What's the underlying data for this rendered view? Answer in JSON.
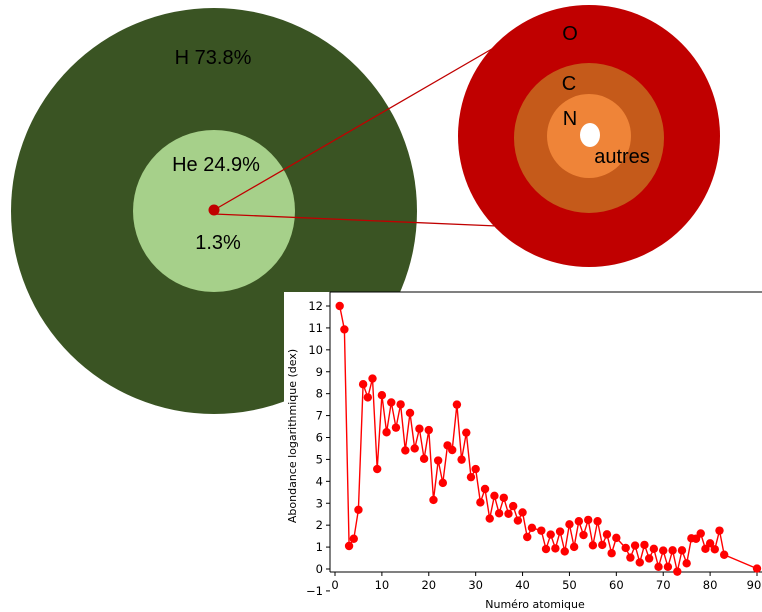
{
  "diagram": {
    "labels": {
      "hydrogen": "H 73.8%",
      "helium": "He 24.9%",
      "metals": "1.3%",
      "oxygen": "O",
      "carbon": "C",
      "nitrogen": "N",
      "others": "autres"
    },
    "colors": {
      "hydrogen": "#3a5423",
      "helium": "#a6d08a",
      "metals_dot": "#c00000",
      "oxygen": "#c00000",
      "carbon": "#c55a1a",
      "nitrogen": "#ef8438",
      "others": "#ffffff",
      "connector": "#c00000"
    }
  },
  "chart_data": {
    "type": "line",
    "xlabel": "Numéro atomique",
    "ylabel": "Abondance logarithmique (dex)",
    "xlim": [
      0,
      92
    ],
    "ylim": [
      -1.2,
      12.6
    ],
    "xticks": [
      0,
      10,
      20,
      30,
      40,
      50,
      60,
      70,
      80,
      90
    ],
    "yticks": [
      -1,
      0,
      1,
      2,
      3,
      4,
      5,
      6,
      7,
      8,
      9,
      10,
      11,
      12
    ],
    "color": "#ff0000",
    "x": [
      1,
      2,
      3,
      4,
      5,
      6,
      7,
      8,
      9,
      10,
      11,
      12,
      13,
      14,
      15,
      16,
      17,
      18,
      19,
      20,
      21,
      22,
      23,
      24,
      25,
      26,
      27,
      28,
      29,
      30,
      31,
      32,
      33,
      34,
      35,
      36,
      37,
      38,
      39,
      40,
      41,
      42,
      44,
      45,
      46,
      47,
      48,
      49,
      50,
      51,
      52,
      53,
      54,
      55,
      56,
      57,
      58,
      59,
      60,
      62,
      63,
      64,
      65,
      66,
      67,
      68,
      69,
      70,
      71,
      72,
      73,
      74,
      75,
      76,
      77,
      78,
      79,
      80,
      81,
      82,
      83,
      90
    ],
    "y": [
      12.0,
      10.93,
      1.05,
      1.38,
      2.7,
      8.43,
      7.83,
      8.69,
      4.56,
      7.93,
      6.24,
      7.6,
      6.45,
      7.51,
      5.41,
      7.12,
      5.5,
      6.4,
      5.03,
      6.34,
      3.15,
      4.95,
      3.93,
      5.64,
      5.43,
      7.5,
      4.99,
      6.22,
      4.19,
      4.56,
      3.04,
      3.65,
      2.3,
      3.34,
      2.54,
      3.25,
      2.52,
      2.87,
      2.21,
      2.58,
      1.46,
      1.88,
      1.75,
      0.91,
      1.57,
      0.94,
      1.71,
      0.8,
      2.04,
      1.01,
      2.18,
      1.55,
      2.24,
      1.08,
      2.18,
      1.1,
      1.58,
      0.72,
      1.42,
      0.96,
      0.52,
      1.07,
      0.3,
      1.1,
      0.48,
      0.92,
      0.1,
      0.84,
      0.1,
      0.85,
      -0.12,
      0.85,
      0.26,
      1.4,
      1.38,
      1.62,
      0.92,
      1.17,
      0.9,
      1.75,
      0.65,
      0.02
    ]
  }
}
